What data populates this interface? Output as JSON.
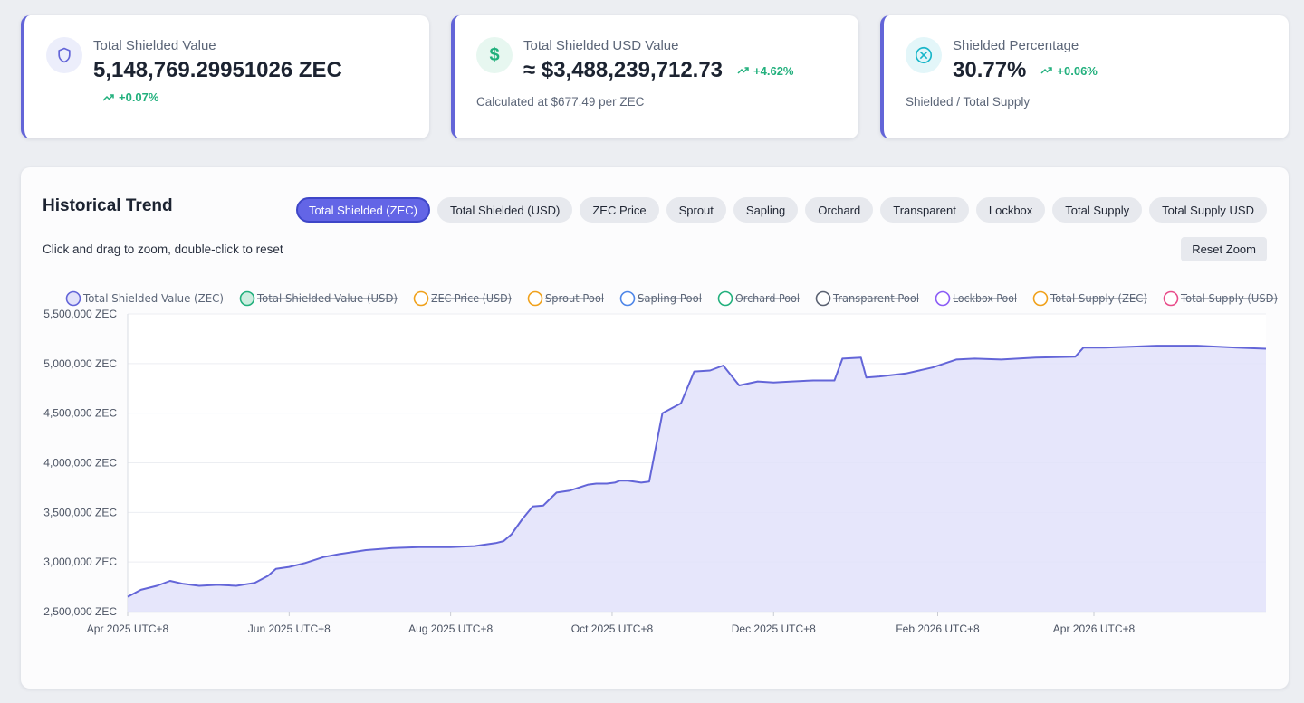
{
  "cards": [
    {
      "label": "Total Shielded Value",
      "value": "5,148,769.29951026 ZEC",
      "change": "+0.07%",
      "sub": "",
      "icon": "shield-icon",
      "color": "#6365d8"
    },
    {
      "label": "Total Shielded USD Value",
      "value": "≈ $3,488,239,712.73",
      "change": "+4.62%",
      "sub": "Calculated at $677.49 per ZEC",
      "icon": "dollar-icon",
      "color": "#22b07d"
    },
    {
      "label": "Shielded Percentage",
      "value": "30.77%",
      "change": "+0.06%",
      "sub": "Shielded / Total Supply",
      "icon": "circle-x-icon",
      "color": "#18b6c9"
    }
  ],
  "panel": {
    "title": "Historical Trend",
    "hint": "Click and drag to zoom, double-click to reset",
    "reset_label": "Reset Zoom",
    "tabs": [
      "Total Shielded (ZEC)",
      "Total Shielded (USD)",
      "ZEC Price",
      "Sprout",
      "Sapling",
      "Orchard",
      "Transparent",
      "Lockbox",
      "Total Supply",
      "Total Supply USD"
    ],
    "active_tab": 0
  },
  "chart_data": {
    "type": "area",
    "title": "",
    "xlabel": "",
    "ylabel": "",
    "ylim": [
      2500000,
      5500000
    ],
    "yticks": [
      2500000,
      3000000,
      3500000,
      4000000,
      4500000,
      5000000,
      5500000
    ],
    "ytick_labels": [
      "2,500,000 ZEC",
      "3,000,000 ZEC",
      "3,500,000 ZEC",
      "4,000,000 ZEC",
      "4,500,000 ZEC",
      "5,000,000 ZEC",
      "5,500,000 ZEC"
    ],
    "xlim": [
      "2025-04-01",
      "2026-06-05"
    ],
    "xticks": [
      "2025-04-01",
      "2025-06-01",
      "2025-08-01",
      "2025-10-01",
      "2025-12-01",
      "2026-02-01",
      "2026-04-01"
    ],
    "xtick_labels": [
      "Apr 2025 UTC+8",
      "Jun 2025 UTC+8",
      "Aug 2025 UTC+8",
      "Oct 2025 UTC+8",
      "Dec 2025 UTC+8",
      "Feb 2026 UTC+8",
      "Apr 2026 UTC+8"
    ],
    "grid": true,
    "legend_position": "top",
    "series": [
      {
        "name": "Total Shielded Value (ZEC)",
        "visible": true,
        "color": "#6365d8",
        "fill": "#e2e2fa",
        "x": [
          "2025-04-01",
          "2025-04-06",
          "2025-04-12",
          "2025-04-17",
          "2025-04-22",
          "2025-04-28",
          "2025-05-05",
          "2025-05-12",
          "2025-05-19",
          "2025-05-24",
          "2025-05-27",
          "2025-06-01",
          "2025-06-07",
          "2025-06-14",
          "2025-06-20",
          "2025-06-30",
          "2025-07-10",
          "2025-07-20",
          "2025-08-01",
          "2025-08-10",
          "2025-08-18",
          "2025-08-21",
          "2025-08-24",
          "2025-08-28",
          "2025-09-01",
          "2025-09-05",
          "2025-09-10",
          "2025-09-15",
          "2025-09-22",
          "2025-09-25",
          "2025-09-29",
          "2025-10-02",
          "2025-10-04",
          "2025-10-07",
          "2025-10-12",
          "2025-10-15",
          "2025-10-20",
          "2025-10-27",
          "2025-11-01",
          "2025-11-07",
          "2025-11-12",
          "2025-11-18",
          "2025-11-25",
          "2025-12-01",
          "2025-12-08",
          "2025-12-16",
          "2025-12-24",
          "2025-12-27",
          "2026-01-03",
          "2026-01-05",
          "2026-01-10",
          "2026-01-20",
          "2026-01-30",
          "2026-02-08",
          "2026-02-15",
          "2026-02-25",
          "2026-03-10",
          "2026-03-25",
          "2026-03-28",
          "2026-04-05",
          "2026-04-15",
          "2026-04-25",
          "2026-05-10",
          "2026-05-25",
          "2026-06-05"
        ],
        "y": [
          2650000,
          2720000,
          2760000,
          2810000,
          2780000,
          2760000,
          2770000,
          2760000,
          2790000,
          2860000,
          2930000,
          2950000,
          2990000,
          3050000,
          3080000,
          3120000,
          3140000,
          3150000,
          3150000,
          3160000,
          3190000,
          3210000,
          3280000,
          3430000,
          3560000,
          3570000,
          3700000,
          3720000,
          3780000,
          3790000,
          3790000,
          3800000,
          3820000,
          3820000,
          3800000,
          3810000,
          4500000,
          4600000,
          4920000,
          4930000,
          4980000,
          4780000,
          4820000,
          4810000,
          4820000,
          4830000,
          4830000,
          5050000,
          5060000,
          4860000,
          4870000,
          4900000,
          4960000,
          5040000,
          5050000,
          5040000,
          5060000,
          5070000,
          5160000,
          5160000,
          5170000,
          5180000,
          5180000,
          5160000,
          5148769
        ]
      },
      {
        "name": "Total Shielded Value (USD)",
        "visible": false,
        "color": "#22b07d"
      },
      {
        "name": "ZEC Price (USD)",
        "visible": false,
        "color": "#f0a11b"
      },
      {
        "name": "Sprout Pool",
        "visible": false,
        "color": "#f0a11b"
      },
      {
        "name": "Sapling Pool",
        "visible": false,
        "color": "#4e86e8"
      },
      {
        "name": "Orchard Pool",
        "visible": false,
        "color": "#22b07d"
      },
      {
        "name": "Transparent Pool",
        "visible": false,
        "color": "#5b6272"
      },
      {
        "name": "Lockbox Pool",
        "visible": false,
        "color": "#8b5cf6"
      },
      {
        "name": "Total Supply (ZEC)",
        "visible": false,
        "color": "#f0a11b"
      },
      {
        "name": "Total Supply (USD)",
        "visible": false,
        "color": "#e84c8a"
      }
    ]
  }
}
